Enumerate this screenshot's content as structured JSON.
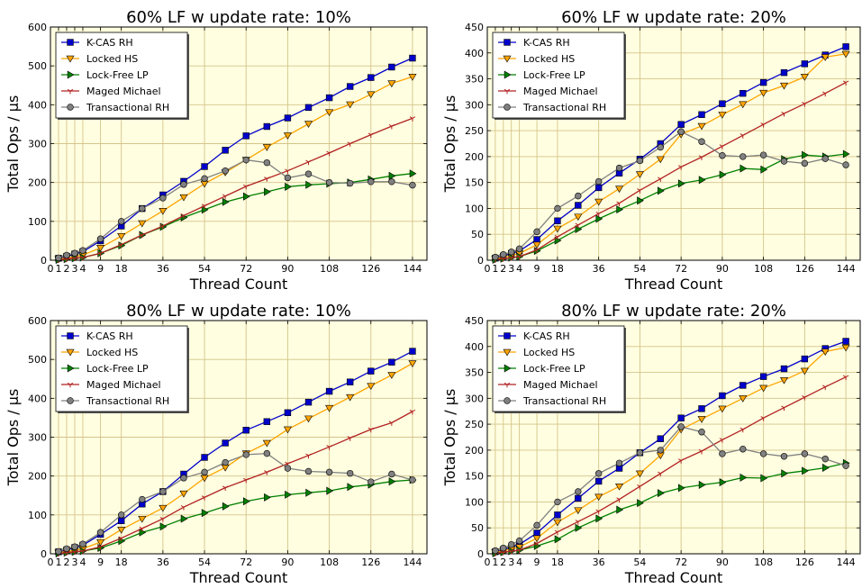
{
  "chart_data": [
    {
      "type": "line",
      "title": "60% LF w update rate: 10%",
      "xlabel": "Thread Count",
      "ylabel": "Total Ops / μs",
      "x_ticks": [
        "0",
        "1",
        "2",
        "3",
        "4",
        "9",
        "18",
        "36",
        "54",
        "72",
        "90",
        "108",
        "126",
        "144"
      ],
      "ylim": [
        0,
        600
      ],
      "y_ticks": [
        "0",
        "100",
        "200",
        "300",
        "400",
        "500",
        "600"
      ],
      "grid": true,
      "legend": "top-left",
      "series": [
        {
          "name": "K-CAS RH",
          "color": "#0000cc",
          "marker": "square",
          "x": [
            1,
            2,
            3,
            4,
            9,
            18,
            27,
            36,
            45,
            54,
            63,
            72,
            81,
            90,
            99,
            108,
            117,
            126,
            135,
            144
          ],
          "y": [
            5,
            10,
            16,
            22,
            50,
            88,
            133,
            168,
            203,
            241,
            283,
            320,
            344,
            366,
            393,
            418,
            447,
            470,
            497,
            520
          ]
        },
        {
          "name": "Locked HS",
          "color": "#ffa500",
          "marker": "triangle-down",
          "x": [
            1,
            2,
            3,
            4,
            9,
            18,
            27,
            36,
            45,
            54,
            63,
            72,
            81,
            90,
            99,
            108,
            117,
            126,
            135,
            144
          ],
          "y": [
            3,
            6,
            9,
            13,
            32,
            62,
            95,
            127,
            162,
            197,
            226,
            258,
            291,
            321,
            351,
            381,
            401,
            427,
            455,
            472
          ]
        },
        {
          "name": "Lock-Free LP",
          "color": "#008000",
          "marker": "triangle-right",
          "x": [
            1,
            2,
            3,
            4,
            9,
            18,
            27,
            36,
            45,
            54,
            63,
            72,
            81,
            90,
            99,
            108,
            117,
            126,
            135,
            144
          ],
          "y": [
            1,
            3,
            5,
            7,
            18,
            38,
            65,
            86,
            110,
            130,
            150,
            164,
            176,
            189,
            194,
            197,
            200,
            208,
            217,
            223
          ]
        },
        {
          "name": "Maged Michael",
          "color": "#b22222",
          "marker": "tri-down",
          "x": [
            1,
            2,
            3,
            4,
            9,
            18,
            27,
            36,
            45,
            54,
            63,
            72,
            81,
            90,
            99,
            108,
            117,
            126,
            135,
            144
          ],
          "y": [
            1,
            3,
            5,
            7,
            18,
            40,
            65,
            88,
            115,
            140,
            165,
            190,
            210,
            230,
            253,
            276,
            300,
            323,
            345,
            365
          ]
        },
        {
          "name": "Transactional RH",
          "color": "#808080",
          "marker": "circle",
          "x": [
            1,
            2,
            3,
            4,
            9,
            18,
            27,
            36,
            45,
            54,
            63,
            72,
            81,
            90,
            99,
            108,
            117,
            126,
            135,
            144
          ],
          "y": [
            6,
            13,
            18,
            25,
            55,
            100,
            133,
            160,
            195,
            210,
            230,
            258,
            251,
            212,
            222,
            200,
            198,
            202,
            202,
            193
          ]
        }
      ]
    },
    {
      "type": "line",
      "title": "60% LF w update rate: 20%",
      "xlabel": "Thread Count",
      "ylabel": "Total Ops / μs",
      "x_ticks": [
        "0",
        "1",
        "2",
        "3",
        "4",
        "9",
        "18",
        "36",
        "54",
        "72",
        "90",
        "108",
        "126",
        "144"
      ],
      "ylim": [
        0,
        450
      ],
      "y_ticks": [
        "0",
        "50",
        "100",
        "150",
        "200",
        "250",
        "300",
        "350",
        "400",
        "450"
      ],
      "grid": true,
      "legend": "top-left",
      "series": [
        {
          "name": "K-CAS RH",
          "color": "#0000cc",
          "marker": "square",
          "x": [
            1,
            2,
            3,
            4,
            9,
            18,
            27,
            36,
            45,
            54,
            63,
            72,
            81,
            90,
            99,
            108,
            117,
            126,
            135,
            144
          ],
          "y": [
            4,
            8,
            13,
            18,
            40,
            76,
            106,
            140,
            168,
            195,
            225,
            262,
            281,
            302,
            322,
            343,
            362,
            379,
            396,
            412
          ]
        },
        {
          "name": "Locked HS",
          "color": "#ffa500",
          "marker": "triangle-down",
          "x": [
            1,
            2,
            3,
            4,
            9,
            18,
            27,
            36,
            45,
            54,
            63,
            72,
            81,
            90,
            99,
            108,
            117,
            126,
            135,
            144
          ],
          "y": [
            3,
            6,
            9,
            13,
            30,
            61,
            84,
            113,
            138,
            166,
            195,
            243,
            259,
            281,
            301,
            323,
            337,
            354,
            392,
            398
          ]
        },
        {
          "name": "Lock-Free LP",
          "color": "#008000",
          "marker": "triangle-right",
          "x": [
            1,
            2,
            3,
            4,
            9,
            18,
            27,
            36,
            45,
            54,
            63,
            72,
            81,
            90,
            99,
            108,
            117,
            126,
            135,
            144
          ],
          "y": [
            1,
            3,
            5,
            7,
            18,
            38,
            60,
            80,
            98,
            115,
            134,
            148,
            155,
            165,
            177,
            175,
            195,
            203,
            200,
            205
          ]
        },
        {
          "name": "Maged Michael",
          "color": "#b22222",
          "marker": "tri-down",
          "x": [
            1,
            2,
            3,
            4,
            9,
            18,
            27,
            36,
            45,
            54,
            63,
            72,
            81,
            90,
            99,
            108,
            117,
            126,
            135,
            144
          ],
          "y": [
            1,
            3,
            5,
            7,
            20,
            45,
            68,
            90,
            110,
            135,
            157,
            180,
            199,
            220,
            241,
            262,
            283,
            302,
            322,
            343
          ]
        },
        {
          "name": "Transactional RH",
          "color": "#808080",
          "marker": "circle",
          "x": [
            1,
            2,
            3,
            4,
            9,
            18,
            27,
            36,
            45,
            54,
            63,
            72,
            81,
            90,
            99,
            108,
            117,
            126,
            135,
            144
          ],
          "y": [
            6,
            11,
            16,
            22,
            55,
            100,
            124,
            152,
            178,
            192,
            218,
            248,
            229,
            202,
            200,
            203,
            191,
            187,
            196,
            184
          ]
        }
      ]
    },
    {
      "type": "line",
      "title": "80% LF w update rate: 10%",
      "xlabel": "Thread Count",
      "ylabel": "Total Ops / μs",
      "x_ticks": [
        "0",
        "1",
        "2",
        "3",
        "4",
        "9",
        "18",
        "36",
        "54",
        "72",
        "90",
        "108",
        "126",
        "144"
      ],
      "ylim": [
        0,
        600
      ],
      "y_ticks": [
        "0",
        "100",
        "200",
        "300",
        "400",
        "500",
        "600"
      ],
      "grid": true,
      "legend": "top-left",
      "series": [
        {
          "name": "K-CAS RH",
          "color": "#0000cc",
          "marker": "square",
          "x": [
            1,
            2,
            3,
            4,
            9,
            18,
            27,
            36,
            45,
            54,
            63,
            72,
            81,
            90,
            99,
            108,
            117,
            126,
            135,
            144
          ],
          "y": [
            5,
            10,
            16,
            22,
            50,
            85,
            128,
            160,
            205,
            248,
            285,
            318,
            340,
            363,
            390,
            418,
            442,
            470,
            493,
            521
          ]
        },
        {
          "name": "Locked HS",
          "color": "#ffa500",
          "marker": "triangle-down",
          "x": [
            1,
            2,
            3,
            4,
            9,
            18,
            27,
            36,
            45,
            54,
            63,
            72,
            81,
            90,
            99,
            108,
            117,
            126,
            135,
            144
          ],
          "y": [
            3,
            6,
            9,
            13,
            30,
            62,
            90,
            118,
            155,
            195,
            222,
            258,
            285,
            320,
            348,
            375,
            403,
            432,
            460,
            490
          ]
        },
        {
          "name": "Lock-Free LP",
          "color": "#008000",
          "marker": "triangle-right",
          "x": [
            1,
            2,
            3,
            4,
            9,
            18,
            27,
            36,
            45,
            54,
            63,
            72,
            81,
            90,
            99,
            108,
            117,
            126,
            135,
            144
          ],
          "y": [
            1,
            3,
            5,
            7,
            15,
            33,
            55,
            70,
            90,
            105,
            122,
            135,
            145,
            152,
            157,
            162,
            172,
            178,
            186,
            190
          ]
        },
        {
          "name": "Maged Michael",
          "color": "#b22222",
          "marker": "tri-down",
          "x": [
            1,
            2,
            3,
            4,
            9,
            18,
            27,
            36,
            45,
            54,
            63,
            72,
            81,
            90,
            99,
            108,
            117,
            126,
            135,
            144
          ],
          "y": [
            1,
            3,
            5,
            7,
            18,
            40,
            65,
            90,
            120,
            145,
            170,
            190,
            210,
            232,
            253,
            275,
            298,
            320,
            337,
            366
          ]
        },
        {
          "name": "Transactional RH",
          "color": "#808080",
          "marker": "circle",
          "x": [
            1,
            2,
            3,
            4,
            9,
            18,
            27,
            36,
            45,
            54,
            63,
            72,
            81,
            90,
            99,
            108,
            117,
            126,
            135,
            144
          ],
          "y": [
            6,
            13,
            18,
            25,
            55,
            100,
            140,
            160,
            195,
            210,
            235,
            255,
            258,
            220,
            212,
            210,
            207,
            185,
            205,
            190
          ]
        }
      ]
    },
    {
      "type": "line",
      "title": "80% LF w update rate: 20%",
      "xlabel": "Thread Count",
      "ylabel": "Total Ops / μs",
      "x_ticks": [
        "0",
        "1",
        "2",
        "3",
        "4",
        "9",
        "18",
        "36",
        "54",
        "72",
        "90",
        "108",
        "126",
        "144"
      ],
      "ylim": [
        0,
        450
      ],
      "y_ticks": [
        "0",
        "50",
        "100",
        "150",
        "200",
        "250",
        "300",
        "350",
        "400",
        "450"
      ],
      "grid": true,
      "legend": "top-left",
      "series": [
        {
          "name": "K-CAS RH",
          "color": "#0000cc",
          "marker": "square",
          "x": [
            1,
            2,
            3,
            4,
            9,
            18,
            27,
            36,
            45,
            54,
            63,
            72,
            81,
            90,
            99,
            108,
            117,
            126,
            135,
            144
          ],
          "y": [
            4,
            8,
            13,
            18,
            40,
            75,
            107,
            140,
            165,
            195,
            222,
            262,
            280,
            305,
            325,
            342,
            357,
            376,
            396,
            410
          ]
        },
        {
          "name": "Locked HS",
          "color": "#ffa500",
          "marker": "triangle-down",
          "x": [
            1,
            2,
            3,
            4,
            9,
            18,
            27,
            36,
            45,
            54,
            63,
            72,
            81,
            90,
            99,
            108,
            117,
            126,
            135,
            144
          ],
          "y": [
            3,
            6,
            9,
            13,
            30,
            61,
            84,
            110,
            130,
            155,
            190,
            240,
            260,
            280,
            300,
            320,
            335,
            353,
            390,
            398
          ]
        },
        {
          "name": "Lock-Free LP",
          "color": "#008000",
          "marker": "triangle-right",
          "x": [
            1,
            2,
            3,
            4,
            9,
            18,
            27,
            36,
            45,
            54,
            63,
            72,
            81,
            90,
            99,
            108,
            117,
            126,
            135,
            144
          ],
          "y": [
            1,
            3,
            5,
            7,
            15,
            28,
            50,
            68,
            85,
            98,
            117,
            127,
            133,
            138,
            147,
            146,
            155,
            160,
            166,
            175
          ]
        },
        {
          "name": "Maged Michael",
          "color": "#b22222",
          "marker": "tri-down",
          "x": [
            1,
            2,
            3,
            4,
            9,
            18,
            27,
            36,
            45,
            54,
            63,
            72,
            81,
            90,
            99,
            108,
            117,
            126,
            135,
            144
          ],
          "y": [
            1,
            3,
            5,
            7,
            20,
            42,
            62,
            82,
            105,
            130,
            155,
            180,
            198,
            220,
            240,
            262,
            282,
            302,
            322,
            341
          ]
        },
        {
          "name": "Transactional RH",
          "color": "#808080",
          "marker": "circle",
          "x": [
            1,
            2,
            3,
            4,
            9,
            18,
            27,
            36,
            45,
            54,
            63,
            72,
            81,
            90,
            99,
            108,
            117,
            126,
            135,
            144
          ],
          "y": [
            6,
            11,
            18,
            25,
            55,
            100,
            120,
            155,
            175,
            195,
            200,
            245,
            235,
            193,
            202,
            193,
            188,
            193,
            183,
            170
          ]
        }
      ]
    }
  ]
}
